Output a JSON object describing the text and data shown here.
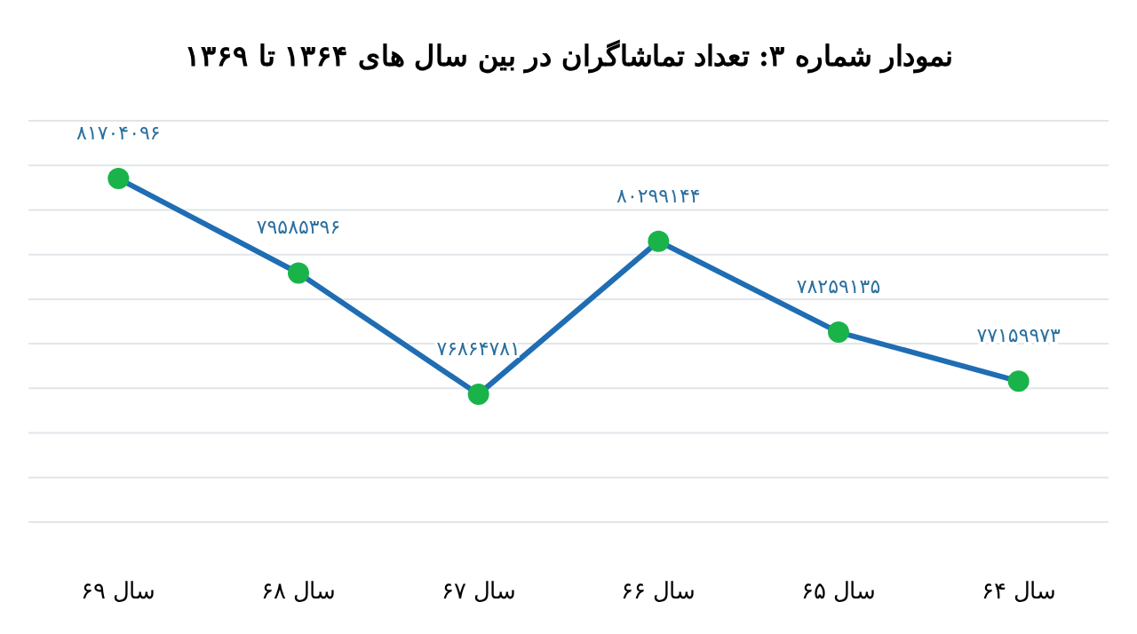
{
  "chart_data": {
    "type": "line",
    "title": "نمودار شماره ۳: تعداد تماشاگران در بین سال های ۱۳۶۴ تا ۱۳۶۹",
    "categories": [
      "سال ۶۹",
      "سال ۶۸",
      "سال ۶۷",
      "سال ۶۶",
      "سال ۶۵",
      "سال ۶۴"
    ],
    "series": [
      {
        "color": "#1f6db3",
        "values": [
          81704096,
          79585396,
          76864781,
          80299144,
          78259135,
          77159973
        ],
        "value_labels": [
          "۸۱۷۰۴۰۹۶",
          "۷۹۵۸۵۳۹۶",
          "۷۶۸۶۴۷۸۱",
          "۸۰۲۹۹۱۴۴",
          "۷۸۲۵۹۱۳۵",
          "۷۷۱۵۹۹۷۳"
        ]
      }
    ],
    "marker": "circle",
    "ylim": [
      74000000,
      83000000
    ],
    "yticks": [
      {
        "value": 74000000,
        "label": null
      },
      {
        "value": 75000000,
        "label": null
      },
      {
        "value": 76000000,
        "label": null
      },
      {
        "value": 77000000,
        "label": null
      },
      {
        "value": 78000000,
        "label": null
      },
      {
        "value": 79000000,
        "label": null
      },
      {
        "value": 80000000,
        "label": null
      },
      {
        "value": 81000000,
        "label": null
      },
      {
        "value": 82000000,
        "label": null
      },
      {
        "value": 83000000,
        "label": null
      }
    ],
    "grid": "y",
    "tick_labels": "x"
  }
}
